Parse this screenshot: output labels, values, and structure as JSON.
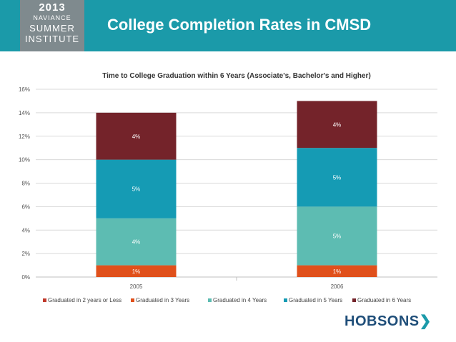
{
  "header": {
    "title": "College Completion Rates in CMSD",
    "logo": {
      "year": "2013",
      "brand": "NAVIANCE",
      "line1": "SUMMER",
      "line2": "INSTITUTE"
    }
  },
  "footer": {
    "brand": "HOBSONS"
  },
  "colors": {
    "header_bg": "#1b9aa9",
    "text_dark": "#1f4e79"
  },
  "chart_data": {
    "type": "bar",
    "stacked": true,
    "title": "Time to College Graduation within 6 Years (Associate's, Bachelor's and Higher)",
    "categories": [
      "2005",
      "2006"
    ],
    "y_ticks": [
      "0%",
      "2%",
      "4%",
      "6%",
      "8%",
      "10%",
      "12%",
      "14%",
      "16%"
    ],
    "ylim": [
      0,
      16
    ],
    "grid": true,
    "legend_position": "bottom",
    "series": [
      {
        "name": "Graduated in 2 years or Less",
        "values": [
          0,
          0
        ],
        "labels": [
          "",
          ""
        ],
        "color": "#c0392b"
      },
      {
        "name": "Graduated in 3 Years",
        "values": [
          1,
          1
        ],
        "labels": [
          "1%",
          "1%"
        ],
        "color": "#e0501b"
      },
      {
        "name": "Graduated in 4 Years",
        "values": [
          4,
          5
        ],
        "labels": [
          "4%",
          "5%"
        ],
        "color": "#5dbcb2"
      },
      {
        "name": "Graduated in 5 Years",
        "values": [
          5,
          5
        ],
        "labels": [
          "5%",
          "5%"
        ],
        "color": "#159bb4"
      },
      {
        "name": "Graduated in 6 Years",
        "values": [
          4,
          4
        ],
        "labels": [
          "4%",
          "4%"
        ],
        "color": "#74232a"
      }
    ]
  }
}
